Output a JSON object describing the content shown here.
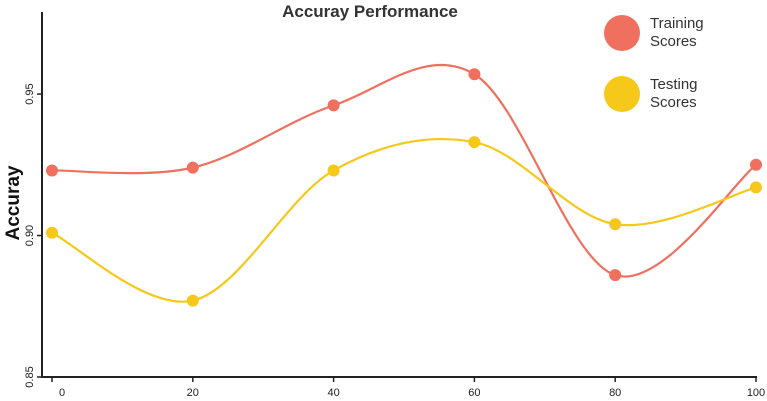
{
  "chart_data": {
    "type": "line",
    "title": "Accuray Performance",
    "xlabel": "",
    "ylabel": "Accuray",
    "x": [
      0,
      20,
      40,
      60,
      80,
      100
    ],
    "xticks": [
      "0",
      "20",
      "40",
      "60",
      "80",
      "100"
    ],
    "yticks": [
      "0.85",
      "0.90",
      "0.95"
    ],
    "ytick_values": [
      0.85,
      0.9,
      0.95
    ],
    "xlim": [
      0,
      100
    ],
    "ylim": [
      0.85,
      0.979
    ],
    "smooth": true,
    "grid": false,
    "legend_position": "top-right",
    "series": [
      {
        "name_lines": [
          "Training",
          "Scores"
        ],
        "color": "#F07060",
        "values": [
          0.923,
          0.924,
          0.946,
          0.957,
          0.886,
          0.925
        ]
      },
      {
        "name_lines": [
          "Testing",
          "Scores"
        ],
        "color": "#F5C819",
        "values": [
          0.901,
          0.877,
          0.923,
          0.933,
          0.904,
          0.917
        ]
      }
    ]
  }
}
